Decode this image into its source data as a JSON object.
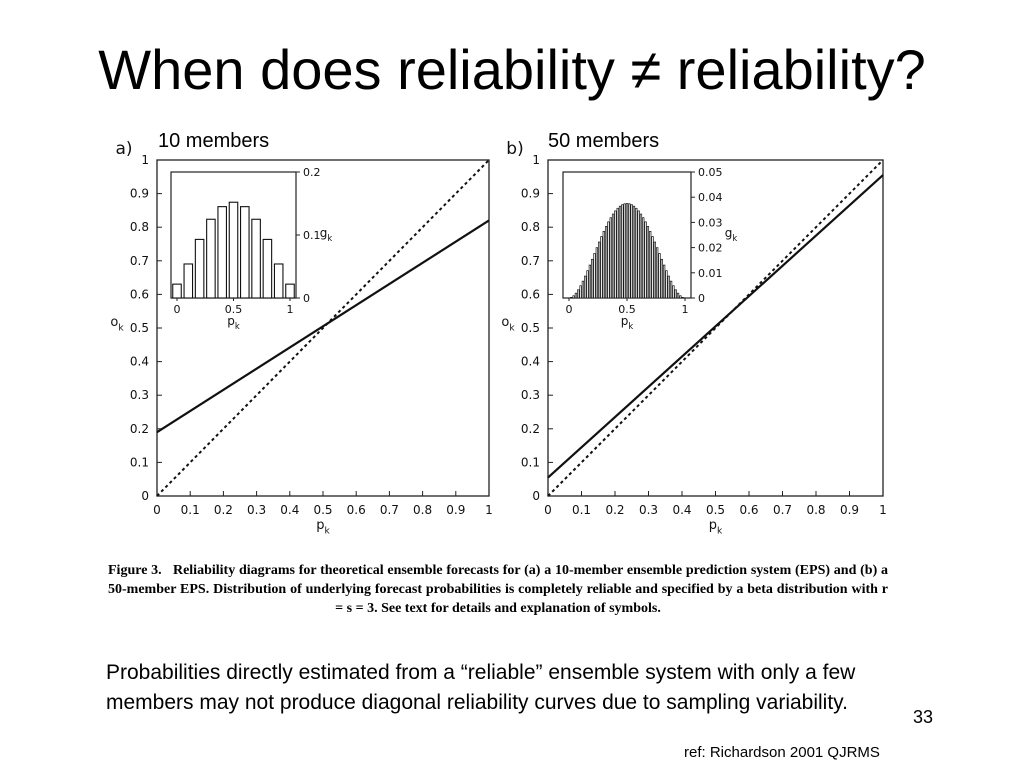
{
  "slide": {
    "title": "When does reliability ≠ reliability?",
    "body_text": "Probabilities directly estimated from a “reliable” ensemble system with only a few members may not produce diagonal reliability curves due to sampling variability.",
    "page_number": "33",
    "reference": "ref: Richardson 2001 QJRMS"
  },
  "figure": {
    "caption_label": "Figure 3.",
    "caption_text": "Reliability diagrams for theoretical ensemble forecasts for (a) a 10-member ensemble prediction system (EPS) and (b) a 50-member EPS. Distribution of underlying forecast probabilities is completely reliable and specified by a beta distribution with r = s = 3. See text for details and explanation of symbols."
  },
  "chart_data": [
    {
      "type": "line",
      "panel_label": "a)",
      "caption": "10 members",
      "xlabel": "p",
      "xlabel_sub": "k",
      "ylabel": "o",
      "ylabel_sub": "k",
      "xlim": [
        0,
        1
      ],
      "ylim": [
        0,
        1
      ],
      "x_ticks": [
        "0",
        "0.1",
        "0.2",
        "0.3",
        "0.4",
        "0.5",
        "0.6",
        "0.7",
        "0.8",
        "0.9",
        "1"
      ],
      "y_ticks": [
        "0",
        "0.1",
        "0.2",
        "0.3",
        "0.4",
        "0.5",
        "0.6",
        "0.7",
        "0.8",
        "0.9",
        "1"
      ],
      "series": [
        {
          "style": "solid",
          "x": [
            0,
            1
          ],
          "y": [
            0.19,
            0.82
          ]
        },
        {
          "style": "dotted",
          "x": [
            0,
            1
          ],
          "y": [
            0,
            1
          ]
        }
      ],
      "inset": {
        "type": "bar",
        "xlabel": "p",
        "xlabel_sub": "k",
        "ylabel": "g",
        "ylabel_sub": "k",
        "xlim": [
          0,
          1
        ],
        "ylim": [
          0,
          0.2
        ],
        "x_ticks": [
          "0",
          "0.5",
          "1"
        ],
        "y_ticks": [
          "0",
          "0.1",
          "0.2"
        ],
        "x": [
          0,
          0.1,
          0.2,
          0.3,
          0.4,
          0.5,
          0.6,
          0.7,
          0.8,
          0.9,
          1.0
        ],
        "values": [
          0.022,
          0.054,
          0.093,
          0.125,
          0.145,
          0.152,
          0.145,
          0.125,
          0.093,
          0.054,
          0.022
        ]
      }
    },
    {
      "type": "line",
      "panel_label": "b)",
      "caption": "50 members",
      "xlabel": "p",
      "xlabel_sub": "k",
      "ylabel": "o",
      "ylabel_sub": "k",
      "xlim": [
        0,
        1
      ],
      "ylim": [
        0,
        1
      ],
      "x_ticks": [
        "0",
        "0.1",
        "0.2",
        "0.3",
        "0.4",
        "0.5",
        "0.6",
        "0.7",
        "0.8",
        "0.9",
        "1"
      ],
      "y_ticks": [
        "0",
        "0.1",
        "0.2",
        "0.3",
        "0.4",
        "0.5",
        "0.6",
        "0.7",
        "0.8",
        "0.9",
        "1"
      ],
      "series": [
        {
          "style": "solid",
          "x": [
            0,
            1
          ],
          "y": [
            0.055,
            0.955
          ]
        },
        {
          "style": "dotted",
          "x": [
            0,
            1
          ],
          "y": [
            0,
            1
          ]
        }
      ],
      "inset": {
        "type": "bar",
        "xlabel": "p",
        "xlabel_sub": "k",
        "ylabel": "g",
        "ylabel_sub": "k",
        "xlim": [
          0,
          1
        ],
        "ylim": [
          0,
          0.05
        ],
        "x_ticks": [
          "0",
          "0.5",
          "1"
        ],
        "y_ticks": [
          "0",
          "0.01",
          "0.02",
          "0.03",
          "0.04",
          "0.05"
        ],
        "distribution": "beta(3,3) expected frequencies over 51 categories (0, 0.02, ..., 1)",
        "peak_value": 0.035,
        "n_bars": 51
      }
    }
  ]
}
